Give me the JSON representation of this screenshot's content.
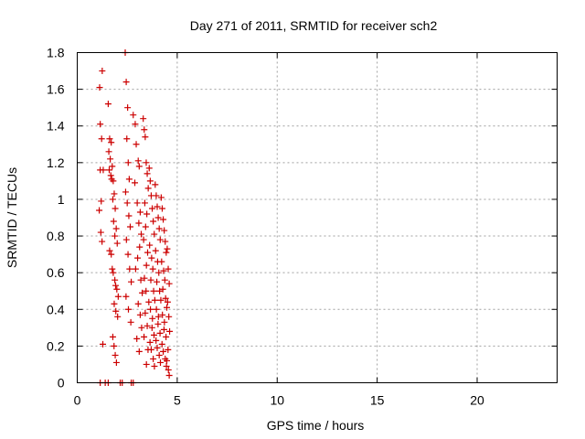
{
  "chart_data": {
    "type": "scatter",
    "title": "Day 271 of 2011, SRMTID for receiver sch2",
    "xlabel": "GPS time / hours",
    "ylabel": "SRMTID / TECUs",
    "xlim": [
      0,
      24
    ],
    "ylim": [
      0,
      1.8
    ],
    "xticks": [
      "0",
      "5",
      "10",
      "15",
      "20"
    ],
    "yticks": [
      "0",
      "0.2",
      "0.4",
      "0.6",
      "0.8",
      "1",
      "1.2",
      "1.4",
      "1.6",
      "1.8"
    ],
    "grid": true,
    "marker": "+",
    "color": "#cc0000",
    "series": [
      {
        "x": [
          1.25,
          1.12,
          1.15,
          1.22,
          1.3,
          1.2,
          1.1,
          1.18,
          1.24,
          1.28,
          1.15,
          1.55,
          1.62,
          1.7,
          1.58,
          1.65,
          1.75,
          1.6,
          1.68,
          1.72,
          1.8,
          1.85,
          1.78,
          1.9,
          1.82,
          1.95,
          1.88,
          2.0,
          1.62,
          1.7,
          1.75,
          1.8,
          1.88,
          1.92,
          1.98,
          2.05,
          1.85,
          1.93,
          2.02,
          1.78,
          1.84,
          1.9,
          1.96,
          2.4,
          2.45,
          2.52,
          2.48,
          2.55,
          2.6,
          2.42,
          2.5,
          2.58,
          2.65,
          2.46,
          2.54,
          2.62,
          2.7,
          2.44,
          2.56,
          2.68,
          2.8,
          2.9,
          2.95,
          3.05,
          3.1,
          2.88,
          3.0,
          3.15,
          3.08,
          3.2,
          3.12,
          3.02,
          2.92,
          3.18,
          3.25,
          3.05,
          3.15,
          3.22,
          2.98,
          3.1,
          3.3,
          3.35,
          3.4,
          3.45,
          3.5,
          3.55,
          3.38,
          3.48,
          3.42,
          3.32,
          3.52,
          3.46,
          3.36,
          3.44,
          3.58,
          3.4,
          3.5,
          3.34,
          3.54,
          3.46,
          3.6,
          3.65,
          3.7,
          3.75,
          3.8,
          3.85,
          3.62,
          3.72,
          3.78,
          3.68,
          3.82,
          3.88,
          3.66,
          3.76,
          3.74,
          3.84,
          3.64,
          3.7,
          3.8,
          3.86,
          3.9,
          3.95,
          4.0,
          4.05,
          4.1,
          4.15,
          3.92,
          4.02,
          4.08,
          3.98,
          4.12,
          4.18,
          3.96,
          4.06,
          4.04,
          4.14,
          3.94,
          4.0,
          4.1,
          4.16,
          4.2,
          4.25,
          4.3,
          4.35,
          4.4,
          4.45,
          4.22,
          4.32,
          4.38,
          4.28,
          4.42,
          4.48,
          4.26,
          4.36,
          4.34,
          4.44,
          4.24,
          4.3,
          4.4,
          4.46,
          4.5,
          4.55,
          4.6,
          4.52,
          4.58,
          4.62,
          4.54,
          4.48,
          4.56,
          4.6,
          1.15,
          1.4,
          1.55,
          2.15,
          2.25,
          2.7,
          2.8
        ],
        "y": [
          1.7,
          1.61,
          1.41,
          1.33,
          1.16,
          0.99,
          0.94,
          0.82,
          0.77,
          0.21,
          1.16,
          1.52,
          1.33,
          1.31,
          1.26,
          1.22,
          1.18,
          1.16,
          1.13,
          1.11,
          1.1,
          1.03,
          1.0,
          0.95,
          0.88,
          0.84,
          0.8,
          0.76,
          0.72,
          0.7,
          0.62,
          0.6,
          0.56,
          0.53,
          0.51,
          0.47,
          0.43,
          0.39,
          0.36,
          0.25,
          0.2,
          0.15,
          0.11,
          1.8,
          1.64,
          1.5,
          1.33,
          1.2,
          1.11,
          1.04,
          0.98,
          0.91,
          0.85,
          0.78,
          0.7,
          0.62,
          0.55,
          0.47,
          0.4,
          0.33,
          1.46,
          1.41,
          1.3,
          1.21,
          1.18,
          1.09,
          0.98,
          0.93,
          0.87,
          0.81,
          0.74,
          0.68,
          0.62,
          0.56,
          0.49,
          0.43,
          0.37,
          0.3,
          0.24,
          0.17,
          1.44,
          1.38,
          1.34,
          1.2,
          1.14,
          1.06,
          0.98,
          0.92,
          0.85,
          0.78,
          0.71,
          0.64,
          0.57,
          0.5,
          0.44,
          0.38,
          0.31,
          0.25,
          0.18,
          0.1,
          1.17,
          1.1,
          1.02,
          0.95,
          0.88,
          0.81,
          0.75,
          0.68,
          0.62,
          0.56,
          0.5,
          0.45,
          0.4,
          0.35,
          0.3,
          0.26,
          0.22,
          0.18,
          0.13,
          0.09,
          1.08,
          1.02,
          0.96,
          0.9,
          0.84,
          0.78,
          0.72,
          0.66,
          0.6,
          0.55,
          0.5,
          0.45,
          0.4,
          0.36,
          0.32,
          0.27,
          0.23,
          0.19,
          0.15,
          0.11,
          1.01,
          0.95,
          0.89,
          0.83,
          0.77,
          0.71,
          0.66,
          0.61,
          0.56,
          0.51,
          0.46,
          0.41,
          0.37,
          0.33,
          0.29,
          0.25,
          0.21,
          0.17,
          0.13,
          0.09,
          0.73,
          0.62,
          0.54,
          0.44,
          0.36,
          0.28,
          0.18,
          0.12,
          0.07,
          0.04,
          0.0,
          0.0,
          0.0,
          0.0,
          0.0,
          0.0,
          0.0
        ]
      }
    ]
  }
}
